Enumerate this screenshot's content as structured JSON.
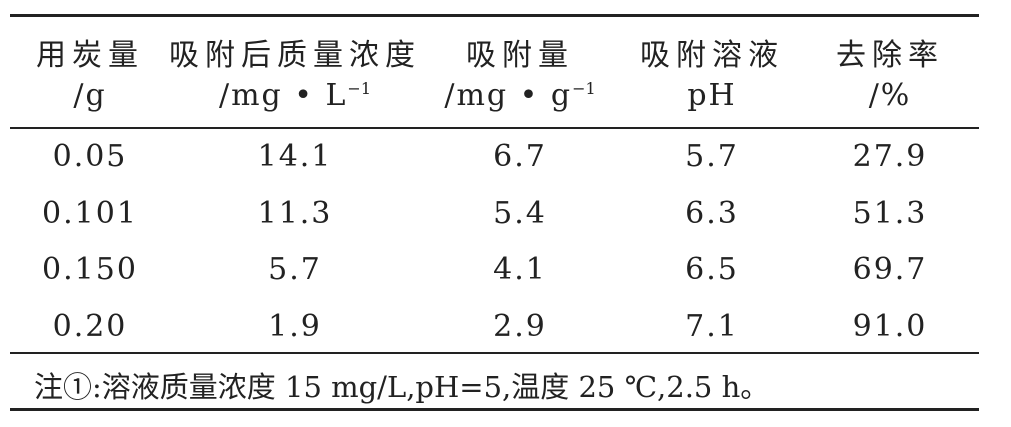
{
  "table": {
    "header": [
      {
        "label": "用炭量",
        "unit": "/g"
      },
      {
        "label": "吸附后质量浓度",
        "unit": "/mg • L",
        "unit_sup": "−1"
      },
      {
        "label": "吸附量",
        "unit": "/mg • g",
        "unit_sup": "−1"
      },
      {
        "label": "吸附溶液",
        "unit": "pH"
      },
      {
        "label": "去除率",
        "unit": "/%"
      }
    ],
    "rows": [
      [
        "0.05",
        "14.1",
        "6.7",
        "5.7",
        "27.9"
      ],
      [
        "0.101",
        "11.3",
        "5.4",
        "6.3",
        "51.3"
      ],
      [
        "0.150",
        "5.7",
        "4.1",
        "6.5",
        "69.7"
      ],
      [
        "0.20",
        "1.9",
        "2.9",
        "7.1",
        "91.0"
      ]
    ],
    "note": "注①:溶液质量浓度 15 mg/L,pH=5,温度 25 ℃,2.5 h。"
  }
}
